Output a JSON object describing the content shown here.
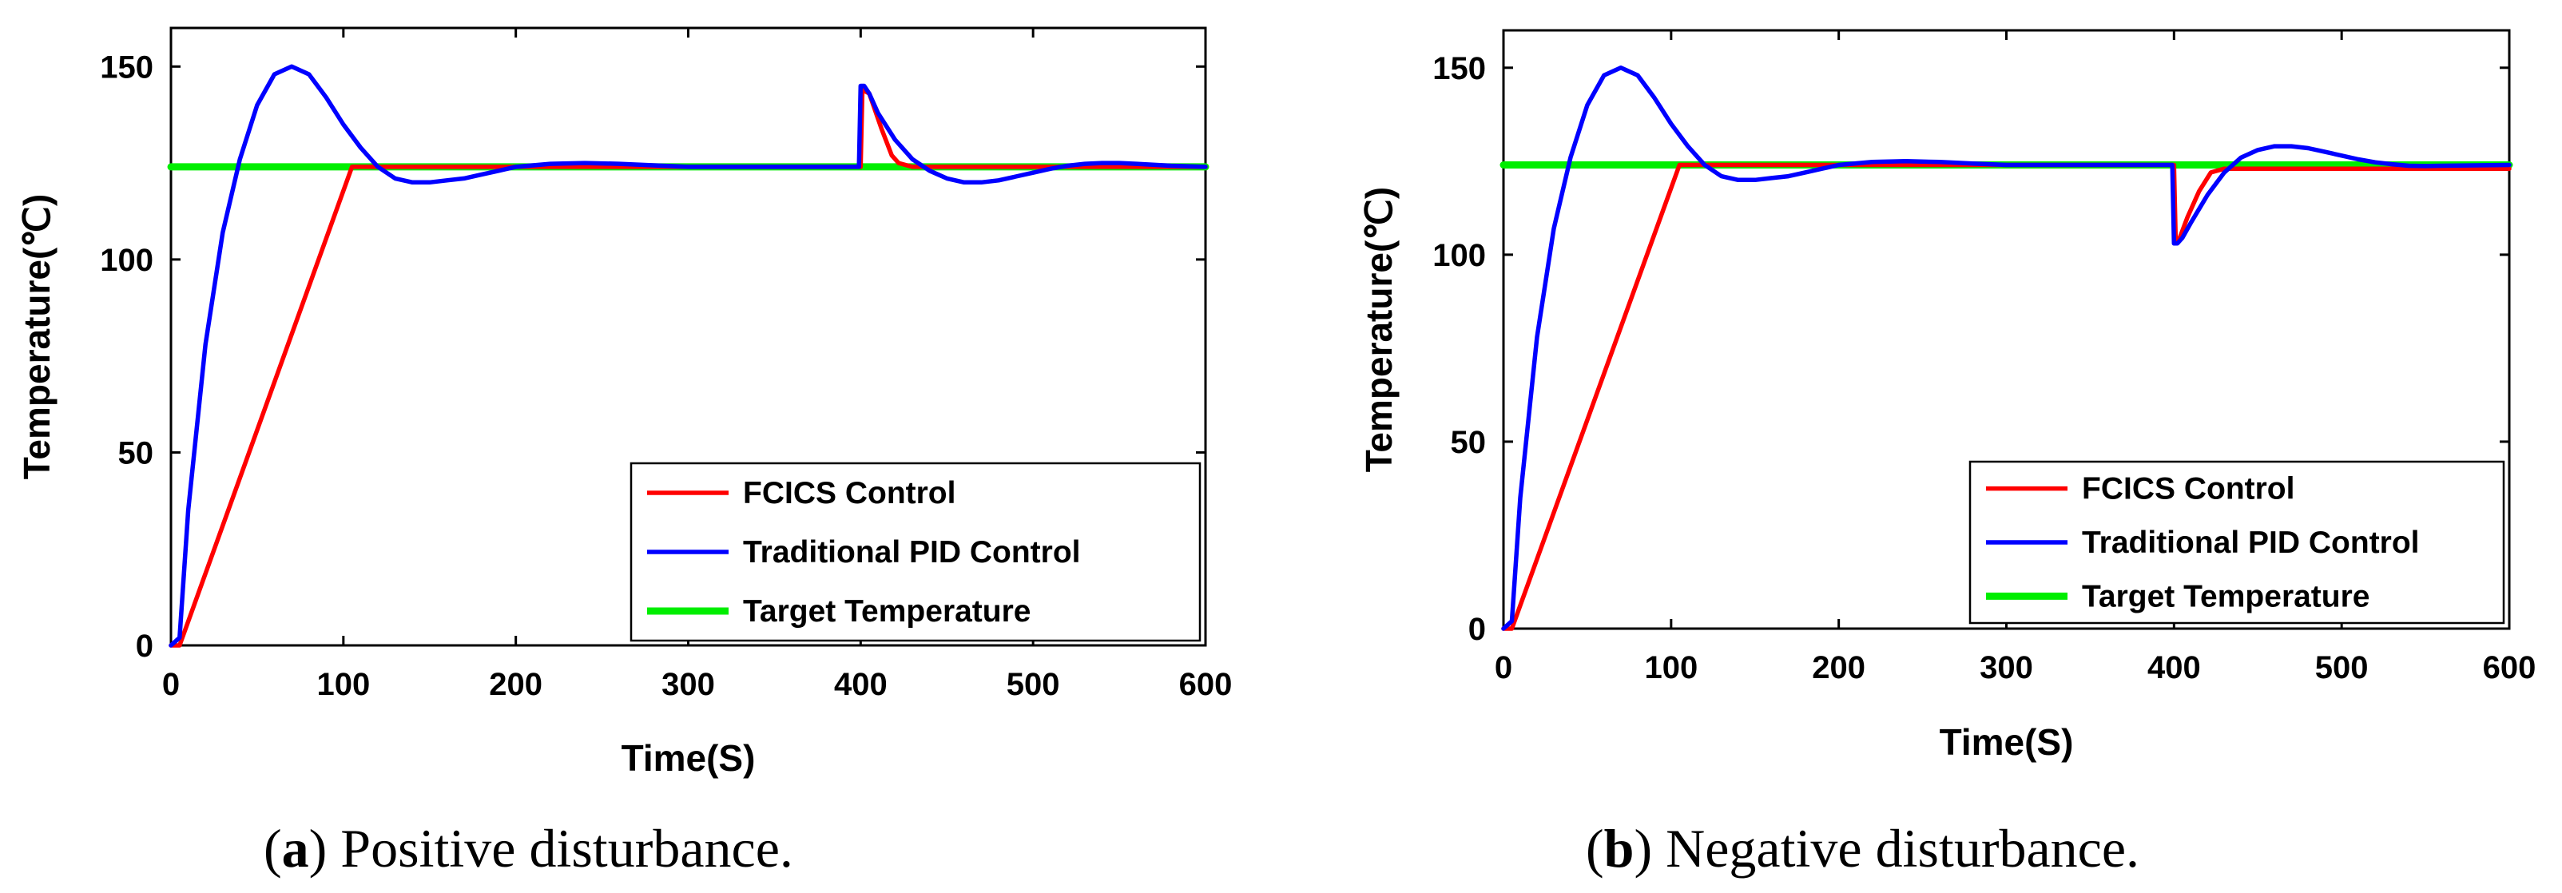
{
  "chart_data": [
    {
      "type": "line",
      "panel": "a",
      "caption_letter": "a",
      "caption_text": " Positive disturbance.",
      "xlabel": "Time(S)",
      "ylabel": "Temperature(℃)",
      "xlim": [
        0,
        600
      ],
      "ylim": [
        0,
        160
      ],
      "xticks": [
        "0",
        "100",
        "200",
        "300",
        "400",
        "500",
        "600"
      ],
      "yticks": [
        "0",
        "50",
        "100",
        "150"
      ],
      "legend_position": "bottom-right",
      "series": [
        {
          "name": "FCICS Control",
          "color": "#ff0000",
          "x": [
            0,
            5,
            105,
            110,
            150,
            200,
            250,
            300,
            350,
            399,
            400,
            401,
            405,
            412,
            418,
            422,
            430,
            450,
            500,
            600
          ],
          "y": [
            0,
            0,
            124,
            124,
            124,
            124,
            124,
            124,
            124,
            124,
            124,
            144,
            143,
            134,
            127,
            125,
            124,
            124,
            124,
            124
          ]
        },
        {
          "name": "Traditional PID Control",
          "color": "#0000ff",
          "x": [
            0,
            5,
            10,
            20,
            30,
            40,
            50,
            60,
            70,
            80,
            90,
            100,
            110,
            120,
            130,
            140,
            150,
            160,
            170,
            180,
            190,
            200,
            220,
            240,
            260,
            280,
            300,
            350,
            399,
            400,
            402,
            405,
            410,
            420,
            430,
            440,
            450,
            460,
            470,
            480,
            490,
            500,
            510,
            520,
            530,
            540,
            550,
            560,
            580,
            600
          ],
          "y": [
            0,
            2,
            35,
            78,
            107,
            126,
            140,
            148,
            150,
            148,
            142,
            135,
            129,
            124,
            121,
            120,
            120,
            120.5,
            121,
            122,
            123,
            124,
            124.8,
            125,
            124.8,
            124.4,
            124,
            124,
            124,
            145,
            145,
            143,
            138,
            131,
            126,
            123,
            121,
            120,
            120,
            120.5,
            121.5,
            122.5,
            123.5,
            124.3,
            124.8,
            125,
            125,
            124.8,
            124.3,
            124
          ]
        },
        {
          "name": "Target Temperature",
          "color": "#00ee00",
          "x": [
            0,
            600
          ],
          "y": [
            124,
            124
          ]
        }
      ]
    },
    {
      "type": "line",
      "panel": "b",
      "caption_letter": "b",
      "caption_text": " Negative disturbance.",
      "xlabel": "Time(S)",
      "ylabel": "Temperature(℃)",
      "xlim": [
        0,
        600
      ],
      "ylim": [
        0,
        160
      ],
      "xticks": [
        "0",
        "100",
        "200",
        "300",
        "400",
        "500",
        "600"
      ],
      "yticks": [
        "0",
        "50",
        "100",
        "150"
      ],
      "legend_position": "bottom-right",
      "series": [
        {
          "name": "FCICS Control",
          "color": "#ff0000",
          "x": [
            0,
            5,
            105,
            110,
            150,
            200,
            250,
            300,
            350,
            399,
            400,
            401,
            403,
            408,
            415,
            422,
            430,
            450,
            500,
            600
          ],
          "y": [
            0,
            0,
            124,
            124,
            124,
            124,
            124,
            124,
            124,
            124,
            124,
            104,
            104,
            110,
            117,
            122,
            123,
            123,
            123,
            123
          ]
        },
        {
          "name": "Traditional PID Control",
          "color": "#0000ff",
          "x": [
            0,
            5,
            10,
            20,
            30,
            40,
            50,
            60,
            70,
            80,
            90,
            100,
            110,
            120,
            130,
            140,
            150,
            160,
            170,
            180,
            190,
            200,
            220,
            240,
            260,
            280,
            300,
            350,
            399,
            400,
            402,
            405,
            410,
            420,
            430,
            440,
            450,
            460,
            470,
            480,
            490,
            500,
            510,
            520,
            530,
            540,
            550,
            560,
            580,
            600
          ],
          "y": [
            0,
            2,
            35,
            78,
            107,
            126,
            140,
            148,
            150,
            148,
            142,
            135,
            129,
            124,
            121,
            120,
            120,
            120.5,
            121,
            122,
            123,
            124,
            124.8,
            125,
            124.8,
            124.4,
            124,
            124,
            124,
            103,
            103,
            104.5,
            108.5,
            116,
            122,
            126,
            128,
            129,
            129,
            128.5,
            127.5,
            126.5,
            125.5,
            124.7,
            124.2,
            123.8,
            123.7,
            123.8,
            123.9,
            124
          ]
        },
        {
          "name": "Target Temperature",
          "color": "#00ee00",
          "x": [
            0,
            600
          ],
          "y": [
            124,
            124
          ]
        }
      ]
    }
  ]
}
